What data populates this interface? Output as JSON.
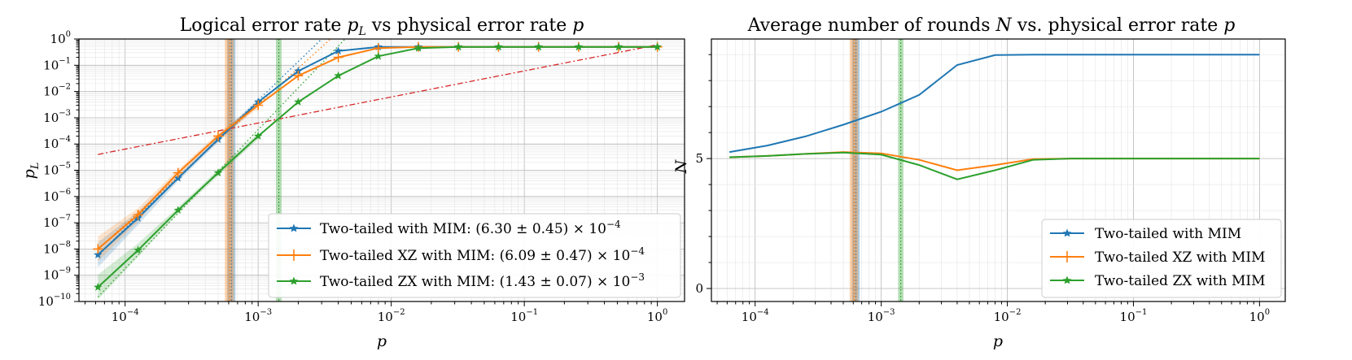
{
  "chart_data": [
    {
      "type": "line",
      "title": "Logical error rate p_L vs physical error rate p",
      "title_parts": {
        "a": "Logical error rate ",
        "b": "p",
        "b_sub": "L",
        "c": " vs physical error rate ",
        "d": "p"
      },
      "xlabel": "p",
      "ylabel": "p_L",
      "ylabel_parts": {
        "main": "p",
        "sub": "L"
      },
      "xscale": "log",
      "yscale": "log",
      "xlim": [
        4.5e-05,
        1.6
      ],
      "ylim": [
        1e-10,
        1
      ],
      "x_ticks": [
        {
          "value": 0.0001,
          "base": "10",
          "exp": "−4"
        },
        {
          "value": 0.001,
          "base": "10",
          "exp": "−3"
        },
        {
          "value": 0.01,
          "base": "10",
          "exp": "−2"
        },
        {
          "value": 0.1,
          "base": "10",
          "exp": "−1"
        },
        {
          "value": 1,
          "base": "10",
          "exp": "0"
        }
      ],
      "y_ticks": [
        {
          "value": 1,
          "base": "10",
          "exp": "0"
        },
        {
          "value": 0.1,
          "base": "10",
          "exp": "−1"
        },
        {
          "value": 0.01,
          "base": "10",
          "exp": "−2"
        },
        {
          "value": 0.001,
          "base": "10",
          "exp": "−3"
        },
        {
          "value": 0.0001,
          "base": "10",
          "exp": "−4"
        },
        {
          "value": 1e-05,
          "base": "10",
          "exp": "−5"
        },
        {
          "value": 1e-06,
          "base": "10",
          "exp": "−6"
        },
        {
          "value": 1e-07,
          "base": "10",
          "exp": "−7"
        },
        {
          "value": 1e-08,
          "base": "10",
          "exp": "−8"
        },
        {
          "value": 1e-09,
          "base": "10",
          "exp": "−9"
        },
        {
          "value": 1e-10,
          "base": "10",
          "exp": "−10"
        }
      ],
      "x": [
        6.25e-05,
        0.000125,
        0.00025,
        0.0005,
        0.001,
        0.002,
        0.004,
        0.008,
        0.016,
        0.032,
        0.064,
        0.128,
        0.256,
        0.512,
        1.0
      ],
      "series": [
        {
          "name": "Two-tailed with MIM",
          "legend": "Two-tailed with MIM: (6.30 ± 0.45) × 10",
          "legend_exp": "−4",
          "color": "#1f77b4",
          "marker": "star",
          "values": [
            6e-09,
            1.5e-07,
            5e-06,
            0.00015,
            0.004,
            0.06,
            0.35,
            0.5,
            0.5,
            0.5,
            0.5,
            0.5,
            0.5,
            0.5,
            0.5
          ],
          "threshold": 0.00063,
          "threshold_err": 4.5e-05
        },
        {
          "name": "Two-tailed XZ with MIM",
          "legend": "Two-tailed XZ with MIM: (6.09 ± 0.47) × 10",
          "legend_exp": "−4",
          "color": "#ff7f0e",
          "marker": "plus",
          "values": [
            1e-08,
            2e-07,
            8e-06,
            0.0002,
            0.003,
            0.04,
            0.2,
            0.45,
            0.5,
            0.5,
            0.5,
            0.5,
            0.5,
            0.5,
            0.5
          ],
          "threshold": 0.000609,
          "threshold_err": 4.7e-05
        },
        {
          "name": "Two-tailed ZX with MIM",
          "legend": "Two-tailed ZX with MIM: (1.43 ± 0.07) × 10",
          "legend_exp": "−3",
          "color": "#2ca02c",
          "marker": "star",
          "values": [
            3.5e-10,
            9e-09,
            3e-07,
            8e-06,
            0.0002,
            0.004,
            0.04,
            0.22,
            0.45,
            0.5,
            0.5,
            0.5,
            0.5,
            0.5,
            0.5
          ],
          "threshold": 0.00143,
          "threshold_err": 7e-05
        }
      ],
      "reference_line": {
        "name": "p_L = p",
        "color": "#d62728",
        "style": "dash-dot",
        "x": [
          6.25e-05,
          1.0
        ],
        "y": [
          4e-05,
          0.6
        ]
      },
      "fit_lines": [
        {
          "series": 0,
          "color": "#1f77b4",
          "x": [
            6.25e-05,
            0.003
          ],
          "y": [
            6e-09,
            1
          ]
        },
        {
          "series": 1,
          "color": "#ff7f0e",
          "x": [
            6.25e-05,
            0.0035
          ],
          "y": [
            1e-08,
            1
          ]
        },
        {
          "series": 2,
          "color": "#2ca02c",
          "x": [
            6.25e-05,
            0.0045
          ],
          "y": [
            1.5e-10,
            1
          ]
        }
      ],
      "legend_position": "lower-right"
    },
    {
      "type": "line",
      "title": "Average number of rounds N vs. physical error rate p",
      "title_parts": {
        "a": "Average number of rounds ",
        "b": "N",
        "c": " vs. physical error rate ",
        "d": "p"
      },
      "xlabel": "p",
      "ylabel": "N",
      "xscale": "log",
      "yscale": "linear",
      "xlim": [
        4.5e-05,
        1.6
      ],
      "ylim": [
        -0.5,
        9.6
      ],
      "x_ticks": [
        {
          "value": 0.0001,
          "base": "10",
          "exp": "−4"
        },
        {
          "value": 0.001,
          "base": "10",
          "exp": "−3"
        },
        {
          "value": 0.01,
          "base": "10",
          "exp": "−2"
        },
        {
          "value": 0.1,
          "base": "10",
          "exp": "−1"
        },
        {
          "value": 1,
          "base": "10",
          "exp": "0"
        }
      ],
      "y_ticks": [
        {
          "value": 0,
          "label": "0"
        },
        {
          "value": 5,
          "label": "5"
        }
      ],
      "x": [
        6.25e-05,
        0.000125,
        0.00025,
        0.0005,
        0.001,
        0.002,
        0.004,
        0.008,
        0.016,
        0.032,
        0.064,
        0.128,
        0.256,
        0.512,
        1.0
      ],
      "series": [
        {
          "name": "Two-tailed with MIM",
          "color": "#1f77b4",
          "marker": "star",
          "values": [
            5.25,
            5.5,
            5.85,
            6.3,
            6.8,
            7.45,
            8.6,
            8.98,
            9.0,
            9.0,
            9.0,
            9.0,
            9.0,
            9.0,
            9.0
          ],
          "threshold": 0.00063,
          "threshold_err": 4.5e-05
        },
        {
          "name": "Two-tailed XZ with MIM",
          "color": "#ff7f0e",
          "marker": "plus",
          "values": [
            5.05,
            5.1,
            5.18,
            5.25,
            5.2,
            4.95,
            4.55,
            4.75,
            4.98,
            5.0,
            5.0,
            5.0,
            5.0,
            5.0,
            5.0
          ],
          "threshold": 0.000609,
          "threshold_err": 4.7e-05
        },
        {
          "name": "Two-tailed ZX with MIM",
          "color": "#2ca02c",
          "marker": "star",
          "values": [
            5.05,
            5.1,
            5.18,
            5.23,
            5.15,
            4.75,
            4.2,
            4.55,
            4.95,
            5.0,
            5.0,
            5.0,
            5.0,
            5.0,
            5.0
          ],
          "threshold": 0.00143,
          "threshold_err": 7e-05
        }
      ],
      "legend_position": "lower-right"
    }
  ]
}
